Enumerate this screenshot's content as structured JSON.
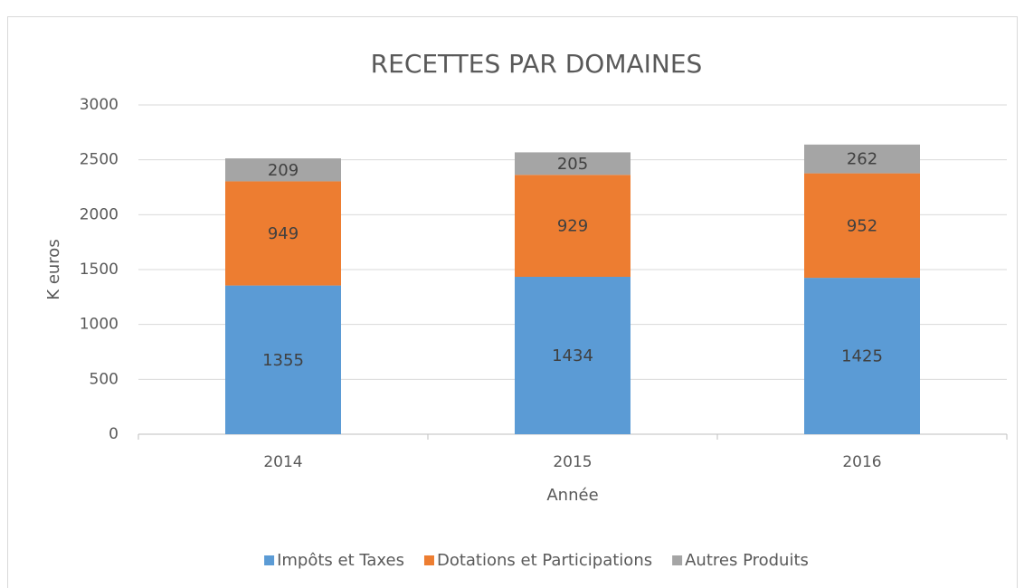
{
  "chart_data": {
    "type": "stacked_bar",
    "title": "RECETTES PAR DOMAINES",
    "x_label": "Année",
    "y_label": "K euros",
    "categories": [
      "2014",
      "2015",
      "2016"
    ],
    "series": [
      {
        "name": "Impôts et Taxes",
        "color": "#5b9bd5",
        "values": [
          1355,
          1434,
          1425
        ]
      },
      {
        "name": "Dotations et Participations",
        "color": "#ed7d31",
        "values": [
          949,
          929,
          952
        ]
      },
      {
        "name": "Autres Produits",
        "color": "#a5a5a5",
        "values": [
          209,
          205,
          262
        ]
      }
    ],
    "ylim": [
      0,
      3000
    ],
    "yticks": [
      0,
      500,
      1000,
      1500,
      2000,
      2500,
      3000
    ],
    "grid": true,
    "legend": "bottom"
  }
}
